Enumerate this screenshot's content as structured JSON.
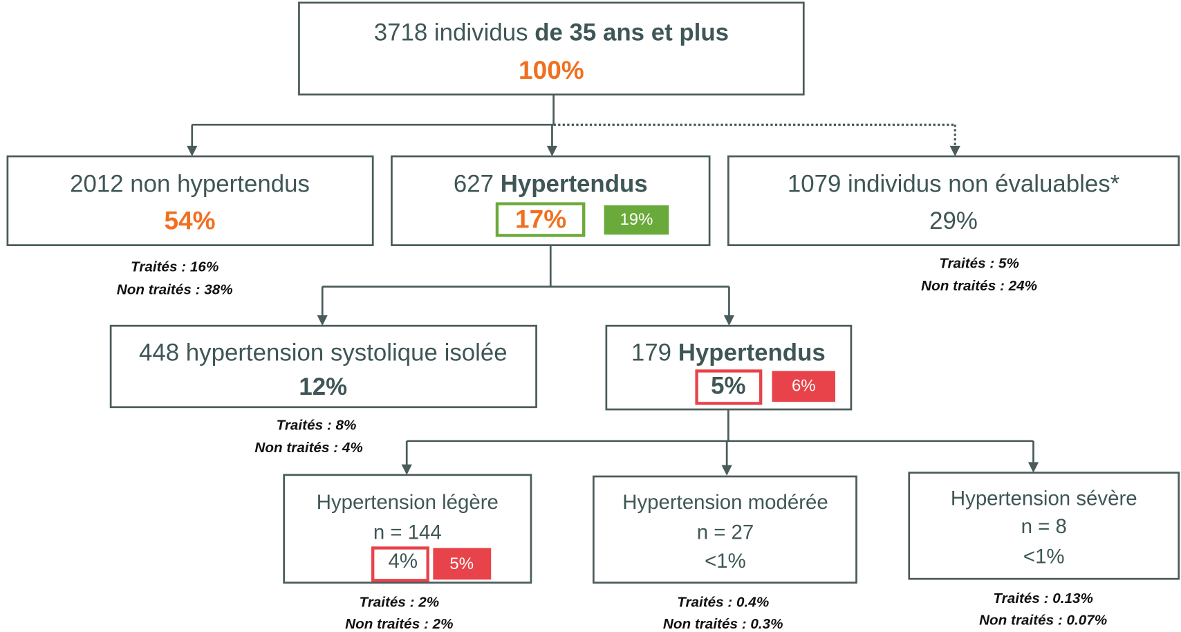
{
  "root": {
    "count": "3718 individus ",
    "group": "de 35 ans et plus",
    "percent": "100%"
  },
  "non_hypertensive": {
    "label": "2012 non hypertendus",
    "percent": "54%",
    "treated": "Traités : 16%",
    "untreated": "Non traités : 38%"
  },
  "hypertensive": {
    "count": "627 ",
    "label": "Hypertendus",
    "percent": "17%",
    "alt_percent": "19%"
  },
  "non_evaluable": {
    "label": "1079 individus non évaluables*",
    "percent": "29%",
    "treated": "Traités : 5%",
    "untreated": "Non traités : 24%"
  },
  "isolated_systolic": {
    "label": "448 hypertension systolique isolée",
    "percent": "12%",
    "treated": "Traités : 8%",
    "untreated": "Non traités : 4%"
  },
  "hypertensive_2": {
    "count": "179 ",
    "label": "Hypertendus",
    "percent": "5%",
    "alt_percent": "6%"
  },
  "mild": {
    "label": "Hypertension légère",
    "n": "n = 144",
    "percent": "4%",
    "alt_percent": "5%",
    "treated": "Traités : 2%",
    "untreated": "Non traités : 2%"
  },
  "moderate": {
    "label": "Hypertension modérée",
    "n": "n = 27",
    "percent": "<1%",
    "treated": "Traités : 0.4%",
    "untreated": "Non traités : 0.3%"
  },
  "severe": {
    "label": "Hypertension sévère",
    "n": "n = 8",
    "percent": "<1%",
    "treated": "Traités : 0.13%",
    "untreated": "Non traités : 0.07%"
  }
}
